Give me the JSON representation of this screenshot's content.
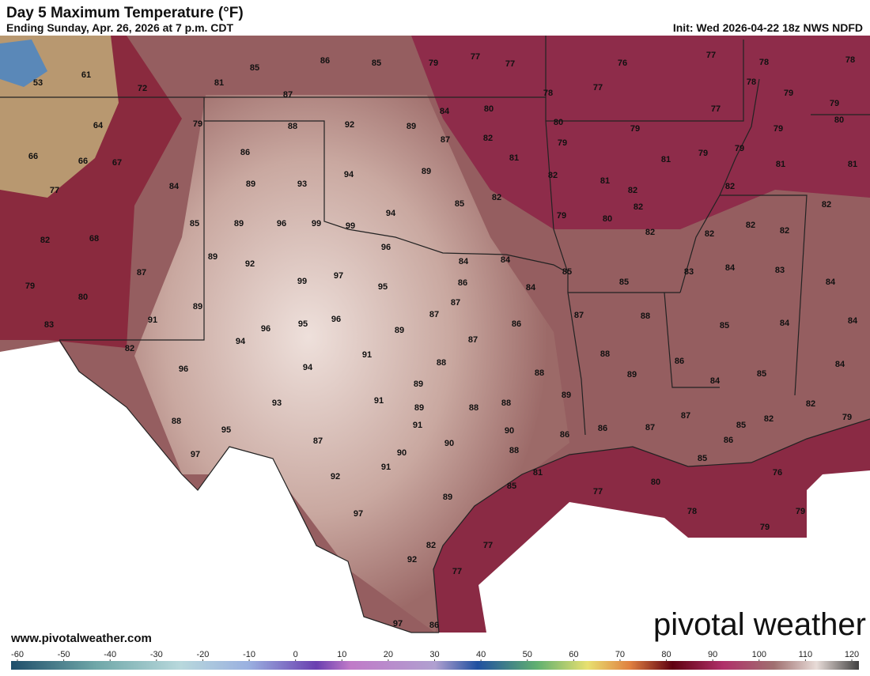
{
  "header": {
    "title": "Day 5 Maximum Temperature (°F)",
    "subtitle": "Ending Sunday, Apr. 26, 2026 at 7 p.m. CDT",
    "init": "Init: Wed 2026-04-22 18z NWS NDFD"
  },
  "map": {
    "labels": [
      53,
      61,
      72,
      81,
      85,
      86,
      85,
      79,
      77,
      77,
      76,
      77,
      78,
      78,
      87,
      78,
      77,
      78,
      79,
      79,
      64,
      79,
      88,
      92,
      89,
      84,
      80,
      80,
      77,
      80,
      66,
      66,
      67,
      86,
      87,
      82,
      79,
      79,
      79,
      79,
      79,
      77,
      84,
      89,
      93,
      94,
      89,
      81,
      82,
      81,
      81,
      81,
      81,
      82,
      82,
      68,
      85,
      89,
      96,
      99,
      99,
      94,
      85,
      82,
      79,
      80,
      82,
      82,
      82,
      82,
      82,
      82,
      82,
      89,
      92,
      96,
      84,
      84,
      85,
      83,
      84,
      83,
      84,
      79,
      87,
      80,
      99,
      97,
      95,
      86,
      84,
      85,
      83,
      89,
      91,
      96,
      95,
      96,
      89,
      87,
      87,
      86,
      87,
      88,
      85,
      84,
      84,
      82,
      94,
      87,
      91,
      88,
      86,
      84,
      96,
      94,
      88,
      88,
      89,
      85,
      84,
      89,
      93,
      91,
      89,
      88,
      88,
      89,
      82,
      79,
      88,
      95,
      91,
      87,
      87,
      82,
      85,
      86,
      86,
      90,
      87,
      90,
      86,
      88,
      90,
      97,
      91,
      85,
      81,
      76,
      92,
      85,
      80,
      77,
      89,
      97,
      78,
      79,
      79,
      82,
      77,
      92,
      77,
      97,
      86
    ]
  },
  "colorbar": {
    "ticks": [
      -60,
      -50,
      -40,
      -30,
      -20,
      -10,
      0,
      10,
      20,
      30,
      40,
      50,
      60,
      70,
      80,
      90,
      100,
      110,
      120
    ]
  },
  "footer": {
    "url": "www.pivotalweather.com",
    "logo": "pivotal weather"
  }
}
